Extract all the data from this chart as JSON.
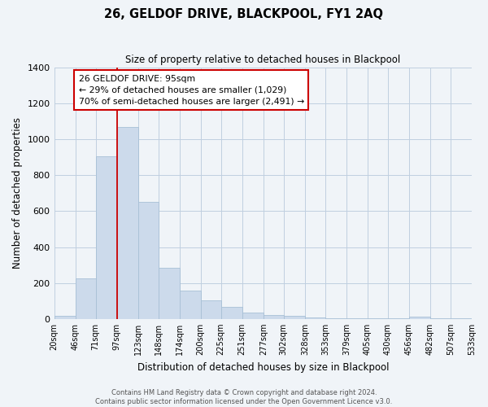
{
  "title": "26, GELDOF DRIVE, BLACKPOOL, FY1 2AQ",
  "subtitle": "Size of property relative to detached houses in Blackpool",
  "xlabel": "Distribution of detached houses by size in Blackpool",
  "ylabel": "Number of detached properties",
  "bar_values": [
    15,
    225,
    905,
    1070,
    650,
    285,
    157,
    105,
    68,
    35,
    22,
    15,
    10,
    5,
    5,
    5,
    5,
    12,
    5,
    5
  ],
  "bin_edges": [
    20,
    46,
    71,
    97,
    123,
    148,
    174,
    200,
    225,
    251,
    277,
    302,
    328,
    353,
    379,
    405,
    430,
    456,
    482,
    507,
    533
  ],
  "tick_labels": [
    "20sqm",
    "46sqm",
    "71sqm",
    "97sqm",
    "123sqm",
    "148sqm",
    "174sqm",
    "200sqm",
    "225sqm",
    "251sqm",
    "277sqm",
    "302sqm",
    "328sqm",
    "353sqm",
    "379sqm",
    "405sqm",
    "430sqm",
    "456sqm",
    "482sqm",
    "507sqm",
    "533sqm"
  ],
  "bar_color": "#ccdaeb",
  "bar_edge_color": "#a8c0d6",
  "vline_x": 97,
  "vline_color": "#cc0000",
  "annotation_text": "26 GELDOF DRIVE: 95sqm\n← 29% of detached houses are smaller (1,029)\n70% of semi-detached houses are larger (2,491) →",
  "annotation_box_color": "#ffffff",
  "annotation_box_edge_color": "#cc0000",
  "ylim": [
    0,
    1400
  ],
  "yticks": [
    0,
    200,
    400,
    600,
    800,
    1000,
    1200,
    1400
  ],
  "footer_line1": "Contains HM Land Registry data © Crown copyright and database right 2024.",
  "footer_line2": "Contains public sector information licensed under the Open Government Licence v3.0.",
  "bg_color": "#f0f4f8",
  "grid_color": "#c0cfe0",
  "figsize": [
    6.0,
    5.0
  ],
  "dpi": 100
}
